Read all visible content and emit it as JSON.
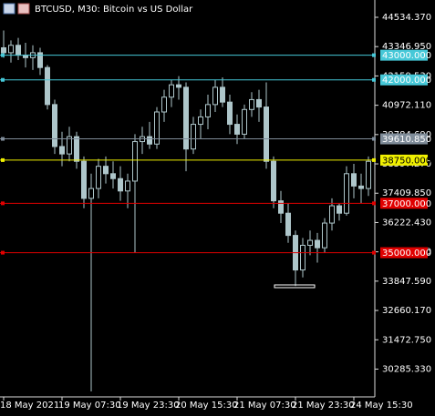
{
  "chart_data": {
    "type": "candlestick",
    "title": "BTCUSD, M30:  Bitcoin vs US Dollar",
    "color": "#aec6ca",
    "categories": [
      "18 May 2021",
      null,
      null,
      null,
      null,
      null,
      null,
      null,
      "19 May 07:30",
      null,
      null,
      null,
      null,
      null,
      null,
      null,
      "19 May 23:30",
      null,
      null,
      null,
      null,
      null,
      null,
      null,
      "20 May 15:30",
      null,
      null,
      null,
      null,
      null,
      null,
      null,
      "21 May 07:30",
      null,
      null,
      null,
      null,
      null,
      null,
      null,
      "21 May 23:30",
      null,
      null,
      null,
      null,
      null,
      null,
      null,
      "24 May 15:30",
      null,
      null
    ],
    "open": [
      43300,
      43100,
      43400,
      43000,
      42900,
      43100,
      42500,
      41000,
      39300,
      39000,
      39700,
      38700,
      37200,
      37600,
      38500,
      38200,
      38000,
      37500,
      37900,
      39500,
      39700,
      39400,
      40700,
      41300,
      41800,
      41700,
      39200,
      40200,
      40500,
      41000,
      41700,
      41100,
      40200,
      39800,
      40800,
      41200,
      40900,
      38700,
      37100,
      36600,
      35700,
      34300,
      35300,
      35500,
      35200,
      36200,
      36900,
      36600,
      38200,
      37700,
      37600
    ],
    "high": [
      44000,
      43600,
      43700,
      43500,
      43400,
      43300,
      42600,
      41200,
      39900,
      40100,
      39900,
      38900,
      38200,
      38800,
      38900,
      38700,
      38500,
      38200,
      39800,
      40100,
      40300,
      40900,
      41600,
      42000,
      42150,
      41900,
      40500,
      40800,
      41400,
      42000,
      42100,
      41400,
      40600,
      41000,
      41500,
      41600,
      41900,
      38900,
      37500,
      37000,
      35900,
      35600,
      35900,
      35800,
      36400,
      37200,
      37000,
      38500,
      38600,
      38200,
      38900
    ],
    "low": [
      42900,
      42700,
      42800,
      42500,
      42400,
      42200,
      40800,
      39000,
      38500,
      38700,
      38400,
      36800,
      29380,
      37200,
      37800,
      37600,
      37100,
      36800,
      35000,
      39000,
      39200,
      39200,
      40300,
      40900,
      41200,
      38300,
      39000,
      39600,
      40000,
      40700,
      40900,
      39800,
      39400,
      39600,
      40500,
      40300,
      38400,
      36800,
      36200,
      35400,
      33650,
      34000,
      34900,
      34600,
      35000,
      35900,
      36300,
      36500,
      37200,
      37000,
      37300
    ],
    "close": [
      43100,
      43400,
      43000,
      42900,
      43100,
      42500,
      41000,
      39300,
      39000,
      39700,
      38700,
      37200,
      37600,
      38500,
      38200,
      38000,
      37500,
      37900,
      39500,
      39700,
      39400,
      40700,
      41300,
      41800,
      41700,
      39200,
      40200,
      40500,
      41000,
      41700,
      41100,
      40200,
      39800,
      40800,
      41200,
      40900,
      38700,
      37100,
      36600,
      35700,
      34300,
      35300,
      35500,
      35200,
      36200,
      36900,
      36600,
      38200,
      37700,
      37600,
      38700
    ],
    "ylim": [
      29160,
      45235
    ],
    "yticks": [
      {
        "value": 44534.37,
        "label": "44534.370"
      },
      {
        "value": 43346.95,
        "label": "43346.950"
      },
      {
        "value": 42159.53,
        "label": "42159.530"
      },
      {
        "value": 40972.11,
        "label": "40972.110"
      },
      {
        "value": 39784.69,
        "label": "39784.690"
      },
      {
        "value": 38597.27,
        "label": "38597.270"
      },
      {
        "value": 37409.85,
        "label": "37409.850"
      },
      {
        "value": 36222.43,
        "label": "36222.430"
      },
      {
        "value": 35035.01,
        "label": "35035.010"
      },
      {
        "value": 33847.59,
        "label": "33847.590"
      },
      {
        "value": 32660.17,
        "label": "32660.170"
      },
      {
        "value": 31472.75,
        "label": "31472.750"
      },
      {
        "value": 30285.33,
        "label": "30285.330"
      }
    ],
    "levels": [
      {
        "value": 43000,
        "label": "43000.000",
        "color": "#46c8d8"
      },
      {
        "value": 42000,
        "label": "42000.000",
        "color": "#46c8d8"
      },
      {
        "value": 39610.85,
        "label": "39610.850",
        "color": "#7f8c99"
      },
      {
        "value": 38750,
        "label": "38750.000",
        "color": "#f0f000"
      },
      {
        "value": 37000,
        "label": "37000.000",
        "color": "#e00000"
      },
      {
        "value": 35000,
        "label": "35000.000",
        "color": "#e00000"
      }
    ]
  }
}
